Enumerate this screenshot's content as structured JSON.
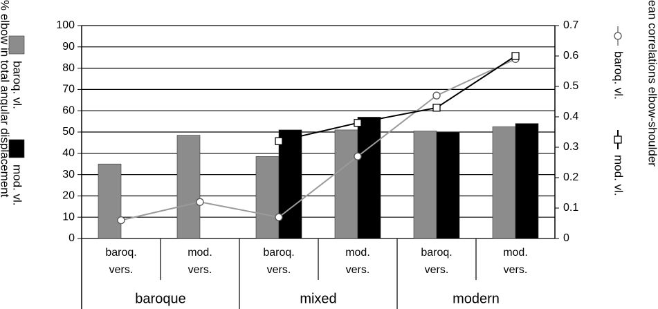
{
  "chart_data": {
    "type": "bar",
    "y_label": "% elbow in total angular displacement",
    "y2_label": "ean correlations elbow-shoulder",
    "categories": [
      [
        "baroq.",
        "vers."
      ],
      [
        "mod.",
        "vers."
      ],
      [
        "baroq.",
        "vers."
      ],
      [
        "mod.",
        "vers."
      ],
      [
        "baroq.",
        "vers."
      ],
      [
        "mod.",
        "vers."
      ]
    ],
    "groups": [
      "baroque",
      "mixed",
      "modern"
    ],
    "ylim": [
      0,
      100
    ],
    "yticks": [
      0,
      10,
      20,
      30,
      40,
      50,
      60,
      70,
      80,
      90,
      100
    ],
    "y2lim": [
      0,
      0.7
    ],
    "y2ticks": [
      0,
      0.1,
      0.2,
      0.3,
      0.4,
      0.5,
      0.6,
      0.7
    ],
    "grid": true,
    "series": [
      {
        "name": "baroq. vl.",
        "type": "bar",
        "color": "#8c8c8c",
        "values": [
          35,
          48.5,
          38.5,
          51,
          50.5,
          52.5
        ]
      },
      {
        "name": "mod. vl.",
        "type": "bar",
        "color": "#000000",
        "values": [
          null,
          null,
          51,
          57,
          50,
          54
        ]
      },
      {
        "name": "baroq. vl.",
        "type": "line",
        "axis": "y2",
        "marker": "circle",
        "color": "#9a9a9a",
        "values": [
          0.06,
          0.12,
          0.07,
          0.27,
          0.47,
          0.59
        ]
      },
      {
        "name": "mod. vl.",
        "type": "line",
        "axis": "y2",
        "marker": "square",
        "color": "#000000",
        "values": [
          null,
          null,
          0.32,
          0.38,
          0.43,
          0.6
        ]
      }
    ]
  }
}
